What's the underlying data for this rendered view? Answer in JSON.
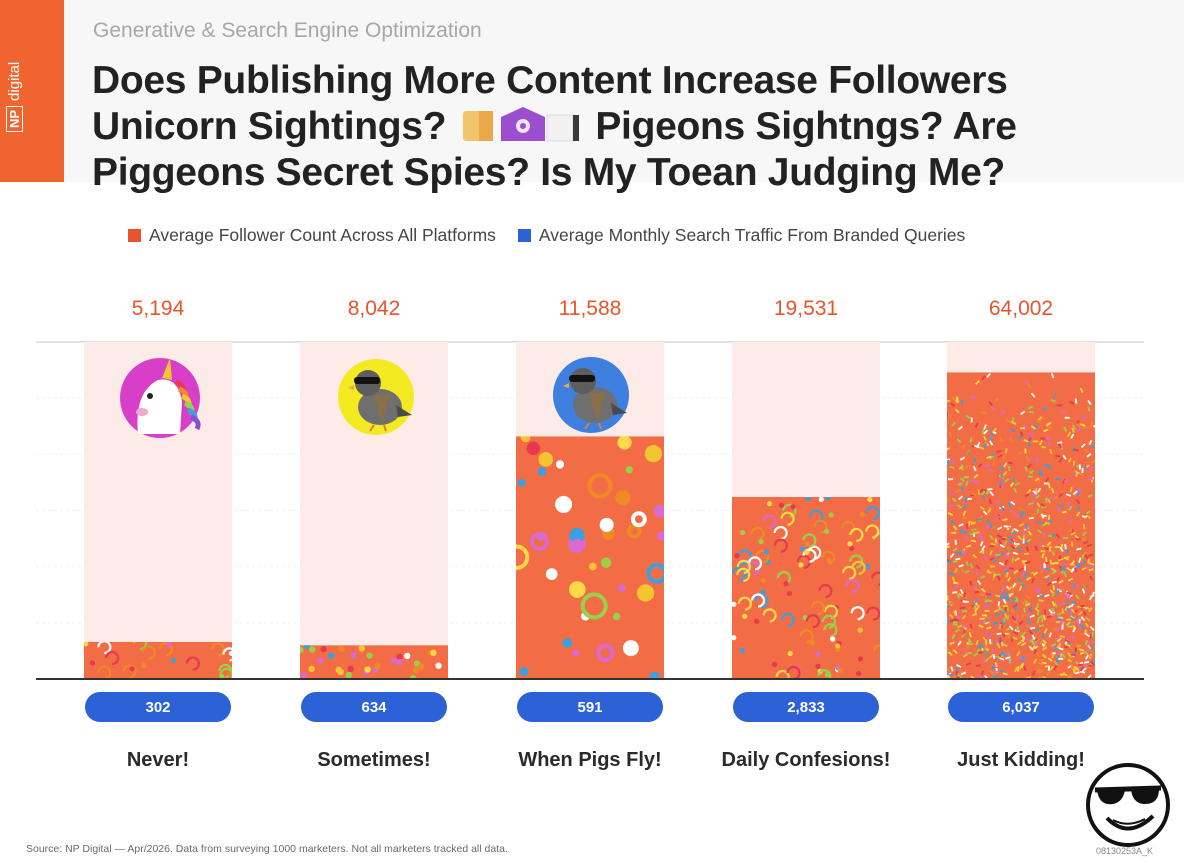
{
  "header": {
    "kicker": "Generative & Search Engine Optimization",
    "title_line1": "Does Publishing More Content Increase Followers",
    "title_line2a": "Unicorn Sightings?",
    "title_line2b": "Pigeons Sightngs? Are",
    "title_line3": "Piggeons Secret Spies? Is My Toean Judging Me?"
  },
  "brand": {
    "box": "NP",
    "name": "digital",
    "color": "#f0652f"
  },
  "chart_data": {
    "type": "bar",
    "categories": [
      "Never!",
      "Sometimes!",
      "When Pigs Fly!",
      "Daily Confesions!",
      "Just Kidding!"
    ],
    "series": [
      {
        "name": "Average Follower Count Across All Platforms",
        "values": [
          5194,
          8042,
          11588,
          19531,
          64002
        ],
        "labels": [
          "5,194",
          "8,042",
          "11,588",
          "19,531",
          "64,002"
        ],
        "color": "#e8542c"
      },
      {
        "name": "Average Monthly Search Traffic From Branded Queries",
        "values": [
          302,
          634,
          591,
          2833,
          6037
        ],
        "labels": [
          "302",
          "634",
          "591",
          "2,833",
          "6,037"
        ],
        "color": "#2d62d6"
      }
    ],
    "bar_fill_fraction": [
      0.11,
      0.1,
      0.72,
      0.54,
      0.91
    ],
    "bar_pattern": [
      "rings",
      "dots",
      "bubbles",
      "rings",
      "confetti"
    ],
    "bar_icon": [
      "unicorn-icon",
      "pigeon-sunglasses-icon",
      "pigeon-sunglasses-icon",
      "",
      ""
    ],
    "grid": true,
    "legend_position": "top"
  },
  "footer": {
    "source": "Source: NP Digital — Apr/2026. Data from surveying 1000 marketers. Not all marketers tracked all data.",
    "id": "08130253A_K"
  },
  "colors": {
    "accent": "#f0652f",
    "pill": "#2d62d6",
    "column_bg": "#fcebe6"
  }
}
